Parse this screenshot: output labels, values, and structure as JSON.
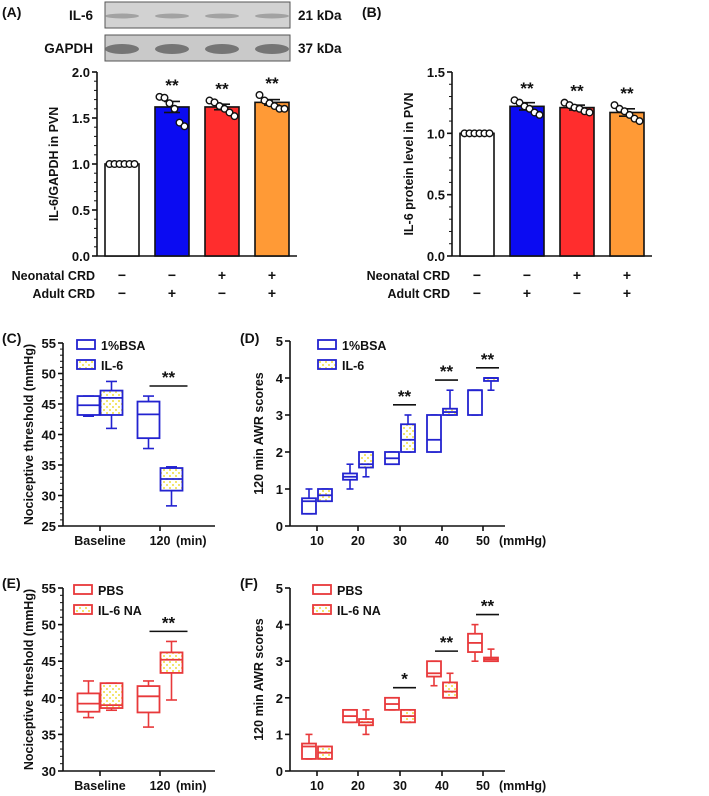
{
  "colors": {
    "blue_box": "#2323d0",
    "red_box": "#e8393b",
    "bar_white": "#ffffff",
    "bar_blue": "#0b0bf2",
    "bar_red": "#ff2d2d",
    "bar_orange": "#ff9a36",
    "hatch_yellow": "#fff3a0"
  },
  "chart_data": [
    {
      "panel": "(A)",
      "type": "bar",
      "blot": {
        "rows": [
          {
            "label": "IL-6",
            "size": "21 kDa"
          },
          {
            "label": "GAPDH",
            "size": "37 kDa"
          }
        ]
      },
      "ylabel": "IL-6/GAPDH in PVN",
      "ylim": [
        0,
        2.0
      ],
      "yticks": [
        "0.0",
        "0.5",
        "1.0",
        "1.5",
        "2.0"
      ],
      "treatments": [
        {
          "label": "Neonatal CRD",
          "values": [
            "−",
            "−",
            "+",
            "+"
          ]
        },
        {
          "label": "Adult CRD",
          "values": [
            "−",
            "+",
            "−",
            "+"
          ]
        }
      ],
      "values": [
        1.0,
        1.62,
        1.62,
        1.67
      ],
      "sem": [
        0,
        0.06,
        0.03,
        0.03
      ],
      "points": [
        [
          1,
          1,
          1,
          1,
          1,
          1
        ],
        [
          1.73,
          1.72,
          1.66,
          1.6,
          1.45,
          1.41
        ],
        [
          1.69,
          1.67,
          1.63,
          1.6,
          1.56,
          1.52
        ],
        [
          1.75,
          1.69,
          1.66,
          1.63,
          1.6,
          1.6
        ]
      ],
      "significance": [
        "",
        "**",
        "**",
        "**"
      ],
      "bar_colors": [
        "#ffffff",
        "#0b0bf2",
        "#ff2d2d",
        "#ff9a36"
      ]
    },
    {
      "panel": "(B)",
      "type": "bar",
      "ylabel": "IL-6 protein level in PVN",
      "ylim": [
        0,
        1.5
      ],
      "yticks": [
        "0.0",
        "0.5",
        "1.0",
        "1.5"
      ],
      "treatments": [
        {
          "label": "Neonatal CRD",
          "values": [
            "−",
            "−",
            "+",
            "+"
          ]
        },
        {
          "label": "Adult CRD",
          "values": [
            "−",
            "+",
            "−",
            "+"
          ]
        }
      ],
      "values": [
        1.0,
        1.22,
        1.21,
        1.17
      ],
      "sem": [
        0,
        0.03,
        0.02,
        0.03
      ],
      "points": [
        [
          1,
          1,
          1,
          1,
          1,
          1
        ],
        [
          1.27,
          1.25,
          1.22,
          1.2,
          1.17,
          1.15
        ],
        [
          1.25,
          1.23,
          1.21,
          1.2,
          1.18,
          1.17
        ],
        [
          1.23,
          1.2,
          1.18,
          1.15,
          1.12,
          1.1
        ]
      ],
      "significance": [
        "",
        "**",
        "**",
        "**"
      ],
      "bar_colors": [
        "#ffffff",
        "#0b0bf2",
        "#ff2d2d",
        "#ff9a36"
      ]
    },
    {
      "panel": "(C)",
      "type": "box",
      "color": "#2323d0",
      "ylabel": "Nociceptive threshold (mmHg)",
      "ylim": [
        25,
        55
      ],
      "yticks": [
        "25",
        "30",
        "35",
        "40",
        "45",
        "50",
        "55"
      ],
      "categories": [
        "Baseline",
        "120"
      ],
      "xunit": "(min)",
      "series": [
        {
          "name": "1%BSA",
          "boxes": [
            [
              43,
              43.2,
              44.8,
              46.3,
              46.3
            ],
            [
              37.7,
              39.4,
              43.3,
              45.4,
              46.3
            ]
          ]
        },
        {
          "name": "IL-6",
          "boxes": [
            [
              41,
              43.2,
              46,
              47.2,
              48.7
            ],
            [
              28.3,
              30.8,
              32.7,
              34.5,
              34.7
            ]
          ]
        }
      ],
      "significance": [
        "",
        "**"
      ]
    },
    {
      "panel": "(D)",
      "type": "box",
      "color": "#2323d0",
      "ylabel": "120 min AWR scores",
      "ylim": [
        0,
        5
      ],
      "yticks": [
        "0",
        "1",
        "2",
        "3",
        "4",
        "5"
      ],
      "categories": [
        "10",
        "20",
        "30",
        "40",
        "50"
      ],
      "xunit": "(mmHg)",
      "series": [
        {
          "name": "1%BSA",
          "boxes": [
            [
              0.33,
              0.33,
              0.67,
              0.75,
              1
            ],
            [
              1,
              1.25,
              1.33,
              1.42,
              1.67
            ],
            [
              1.67,
              1.67,
              1.83,
              2,
              2
            ],
            [
              2,
              2,
              2.33,
              3,
              3
            ],
            [
              3,
              3,
              3.67,
              3.67,
              3.67
            ]
          ]
        },
        {
          "name": "IL-6",
          "boxes": [
            [
              0.67,
              0.67,
              0.83,
              1,
              1
            ],
            [
              1.33,
              1.58,
              1.67,
              2,
              2
            ],
            [
              2,
              2,
              2.33,
              2.75,
              3
            ],
            [
              3,
              3,
              3.08,
              3.17,
              3.67
            ],
            [
              3.67,
              3.92,
              4,
              4,
              4
            ]
          ]
        }
      ],
      "significance": [
        "",
        "",
        "**",
        "**",
        "**"
      ]
    },
    {
      "panel": "(E)",
      "type": "box",
      "color": "#e8393b",
      "ylabel": "Nociceptive threshold (mmHg)",
      "ylim": [
        30,
        55
      ],
      "yticks": [
        "30",
        "35",
        "40",
        "45",
        "50",
        "55"
      ],
      "categories": [
        "Baseline",
        "120"
      ],
      "xunit": "(min)",
      "series": [
        {
          "name": "PBS",
          "boxes": [
            [
              37.3,
              38.1,
              39.2,
              40.6,
              42.3
            ],
            [
              36,
              38,
              40.2,
              41.6,
              42.3
            ]
          ]
        },
        {
          "name": "IL-6  NA",
          "boxes": [
            [
              38.3,
              38.6,
              39,
              42,
              42
            ],
            [
              39.7,
              43.4,
              45.2,
              46.2,
              47.7
            ]
          ]
        }
      ],
      "significance": [
        "",
        "**"
      ]
    },
    {
      "panel": "(F)",
      "type": "box",
      "color": "#e8393b",
      "ylabel": "120 min AWR scores",
      "ylim": [
        0,
        5
      ],
      "yticks": [
        "0",
        "1",
        "2",
        "3",
        "4",
        "5"
      ],
      "categories": [
        "10",
        "20",
        "30",
        "40",
        "50"
      ],
      "xunit": "(mmHg)",
      "series": [
        {
          "name": "PBS",
          "boxes": [
            [
              0.33,
              0.33,
              0.67,
              0.75,
              1
            ],
            [
              1.33,
              1.33,
              1.5,
              1.67,
              1.67
            ],
            [
              1.67,
              1.67,
              1.83,
              2,
              2
            ],
            [
              2.33,
              2.58,
              2.67,
              3,
              3
            ],
            [
              3,
              3.25,
              3.5,
              3.75,
              4
            ]
          ]
        },
        {
          "name": "IL-6 NA",
          "boxes": [
            [
              0.33,
              0.33,
              0.5,
              0.67,
              0.67
            ],
            [
              1,
              1.25,
              1.33,
              1.42,
              1.67
            ],
            [
              1.33,
              1.33,
              1.5,
              1.67,
              1.67
            ],
            [
              2,
              2,
              2.17,
              2.42,
              2.67
            ],
            [
              3,
              3,
              3.05,
              3.1,
              3.33
            ]
          ]
        }
      ],
      "significance": [
        "",
        "",
        "*",
        "**",
        "**"
      ]
    }
  ]
}
